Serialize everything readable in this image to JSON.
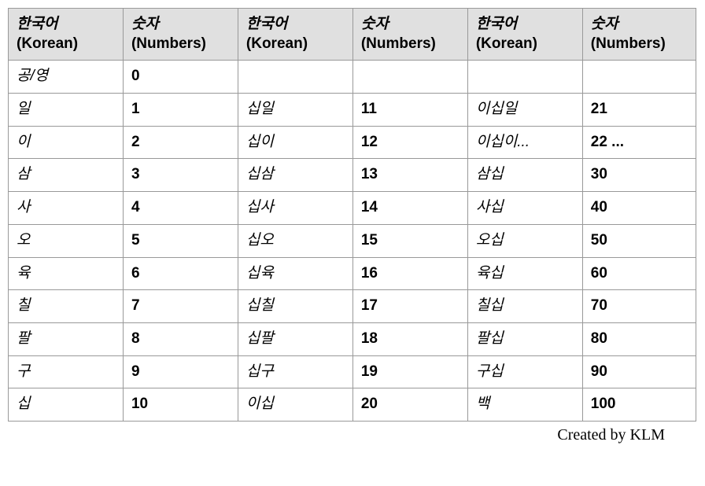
{
  "table": {
    "header_bg": "#e0e0e0",
    "border_color": "#999999",
    "column_widths": [
      "16.7%",
      "16.7%",
      "16.7%",
      "16.7%",
      "16.7%",
      "16.5%"
    ],
    "header_line1_hangul": "한국어",
    "header_line1_eng": "(Korean)",
    "header_line2_hangul": "숫자",
    "header_line2_eng": "(Numbers)",
    "rows": [
      {
        "k1": "공/영",
        "n1": "0",
        "k2": "",
        "n2": "",
        "k3": "",
        "n3": ""
      },
      {
        "k1": "일",
        "n1": "1",
        "k2": "십일",
        "n2": "11",
        "k3": "이십일",
        "n3": "21"
      },
      {
        "k1": "이",
        "n1": "2",
        "k2": "십이",
        "n2": "12",
        "k3": "이십이...",
        "n3": "22 ..."
      },
      {
        "k1": "삼",
        "n1": "3",
        "k2": "십삼",
        "n2": "13",
        "k3": "삼십",
        "n3": "30"
      },
      {
        "k1": "사",
        "n1": "4",
        "k2": "십사",
        "n2": "14",
        "k3": "사십",
        "n3": "40"
      },
      {
        "k1": "오",
        "n1": "5",
        "k2": "십오",
        "n2": "15",
        "k3": "오십",
        "n3": "50"
      },
      {
        "k1": "육",
        "n1": "6",
        "k2": "십육",
        "n2": "16",
        "k3": "육십",
        "n3": "60"
      },
      {
        "k1": "칠",
        "n1": "7",
        "k2": "십칠",
        "n2": "17",
        "k3": "칠십",
        "n3": "70"
      },
      {
        "k1": "팔",
        "n1": "8",
        "k2": "십팔",
        "n2": "18",
        "k3": "팔십",
        "n3": "80"
      },
      {
        "k1": "구",
        "n1": "9",
        "k2": "십구",
        "n2": "19",
        "k3": "구십",
        "n3": "90"
      },
      {
        "k1": "십",
        "n1": "10",
        "k2": "이십",
        "n2": "20",
        "k3": "백",
        "n3": "100"
      }
    ]
  },
  "credit": "Created by KLM"
}
